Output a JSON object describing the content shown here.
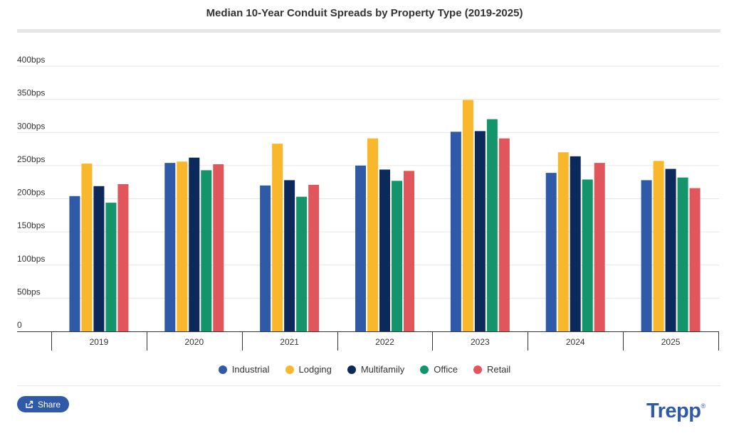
{
  "title": "Median 10-Year Conduit Spreads by Property Type (2019-2025)",
  "chart_data": {
    "type": "bar",
    "title": "Median 10-Year Conduit Spreads by Property Type (2019-2025)",
    "categories": [
      "2019",
      "2020",
      "2021",
      "2022",
      "2023",
      "2024",
      "2025"
    ],
    "y_ticks": [
      "0",
      "50bps",
      "100bps",
      "150bps",
      "200bps",
      "250bps",
      "300bps",
      "350bps",
      "400bps"
    ],
    "ylim": [
      0,
      400
    ],
    "y_unit": "bps",
    "grid": true,
    "legend_position": "bottom",
    "series": [
      {
        "name": "Industrial",
        "color": "#2f5aa8",
        "values": [
          204,
          254,
          220,
          250,
          301,
          239,
          228
        ]
      },
      {
        "name": "Lodging",
        "color": "#f9b72b",
        "values": [
          253,
          256,
          283,
          291,
          349,
          270,
          257
        ]
      },
      {
        "name": "Multifamily",
        "color": "#0b2a5b",
        "values": [
          219,
          262,
          228,
          244,
          302,
          264,
          245
        ]
      },
      {
        "name": "Office",
        "color": "#14946b",
        "values": [
          194,
          243,
          203,
          227,
          320,
          229,
          232
        ]
      },
      {
        "name": "Retail",
        "color": "#e0565b",
        "values": [
          222,
          252,
          221,
          242,
          291,
          254,
          216
        ]
      }
    ]
  },
  "share_label": "Share",
  "logo": {
    "text": "Trepp",
    "mark": "®"
  }
}
